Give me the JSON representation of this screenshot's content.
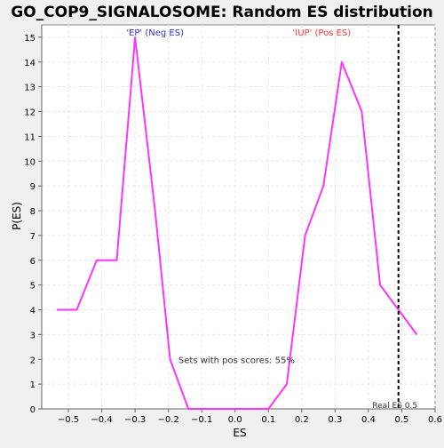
{
  "chart_data": {
    "type": "line",
    "title": "GO_COP9_SIGNALOSOME: Random ES distribution",
    "xlabel": "ES",
    "ylabel": "P(ES)",
    "xlim": [
      -0.58,
      0.6
    ],
    "ylim": [
      0,
      15.5
    ],
    "x_ticks": [
      -0.5,
      -0.4,
      -0.3,
      -0.2,
      -0.1,
      0.0,
      0.1,
      0.2,
      0.3,
      0.4,
      0.5,
      0.6
    ],
    "x_tick_labels": [
      "−0.5",
      "−0.4",
      "−0.3",
      "−0.2",
      "−0.1",
      "0.0",
      "0.1",
      "0.2",
      "0.3",
      "0.4",
      "0.5",
      "0.6"
    ],
    "y_ticks": [
      0,
      1,
      2,
      3,
      4,
      5,
      6,
      7,
      8,
      9,
      10,
      11,
      12,
      13,
      14,
      15
    ],
    "y_tick_labels": [
      "0",
      "1",
      "2",
      "3",
      "4",
      "5",
      "6",
      "7",
      "8",
      "9",
      "10",
      "11",
      "12",
      "13",
      "14",
      "15"
    ],
    "grid": true,
    "series": [
      {
        "color": "#ff33ff",
        "x": [
          -0.535,
          -0.475,
          -0.415,
          -0.355,
          -0.3,
          -0.24,
          -0.195,
          -0.14,
          -0.075,
          -0.02,
          0.04,
          0.1,
          0.155,
          0.21,
          0.265,
          0.32,
          0.38,
          0.435,
          0.49,
          0.545
        ],
        "y": [
          4,
          4,
          6,
          6,
          15,
          8,
          2,
          0,
          0,
          0,
          0,
          0,
          1,
          7,
          9,
          14,
          12,
          5,
          4,
          3
        ]
      }
    ],
    "annotations": {
      "neg_label": "'EP' (Neg ES)",
      "neg_color": "#3333cc",
      "pos_label": "'IUP' (Pos ES)",
      "pos_color": "#ff3333",
      "pos_scores": "Sets with pos scores: 55%",
      "real_es_label": "Real ES 0.5",
      "real_es": 0.49
    }
  }
}
